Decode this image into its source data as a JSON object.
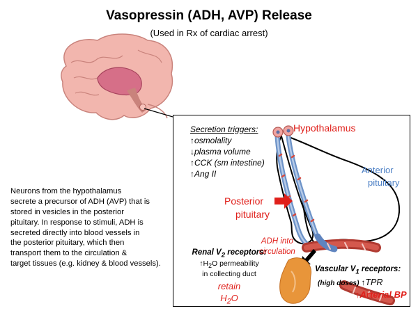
{
  "title": "Vasopressin (ADH, AVP) Release",
  "subtitle": "(Used in Rx of cardiac arrest)",
  "description_lines": [
    "Neurons from the hypothalamus",
    "secrete a precursor of ADH (AVP) that is",
    "stored in vesicles in the posterior",
    "pituitary. In response to stimuli, ADH is",
    "secreted directly into blood vessels in",
    "the posterior pituitary, which then",
    "transport them to the circulation &",
    "target tissues (e.g. kidney & blood vessels)."
  ],
  "triggers": {
    "heading": "Secretion triggers:",
    "items": [
      {
        "arrow": "up",
        "text": "osmolality"
      },
      {
        "arrow": "down",
        "text": "plasma volume"
      },
      {
        "arrow": "up",
        "text": "CCK (sm intestine)"
      },
      {
        "arrow": "up",
        "text": "Ang II"
      }
    ]
  },
  "labels": {
    "hypothalamus": "Hypothalamus",
    "anterior": "Anterior",
    "pituitary": "pituitary",
    "posterior": "Posterior",
    "posterior_pituitary": "pituitary",
    "adh_line1": "ADH into",
    "adh_line2": "circulation"
  },
  "renal": {
    "heading": "Renal V",
    "heading_sub": "2",
    "heading_rest": " receptors:",
    "line1_pre": "H",
    "line1_sub": "2",
    "line1_post": "O permeability",
    "line2": "in collecting duct",
    "retain": "retain",
    "h2o_pre": "H",
    "h2o_sub": "2",
    "h2o_post": "O"
  },
  "vascular": {
    "heading": "Vascular V",
    "heading_sub": "1",
    "heading_rest": " receptors:",
    "dose": "(high doses)",
    "tpr": "TPR",
    "bp": "Arterial BP"
  },
  "colors": {
    "red": "#e0201b",
    "blue": "#4a7ec4",
    "brain": "#e89b95",
    "kidney": "#e8953a"
  }
}
